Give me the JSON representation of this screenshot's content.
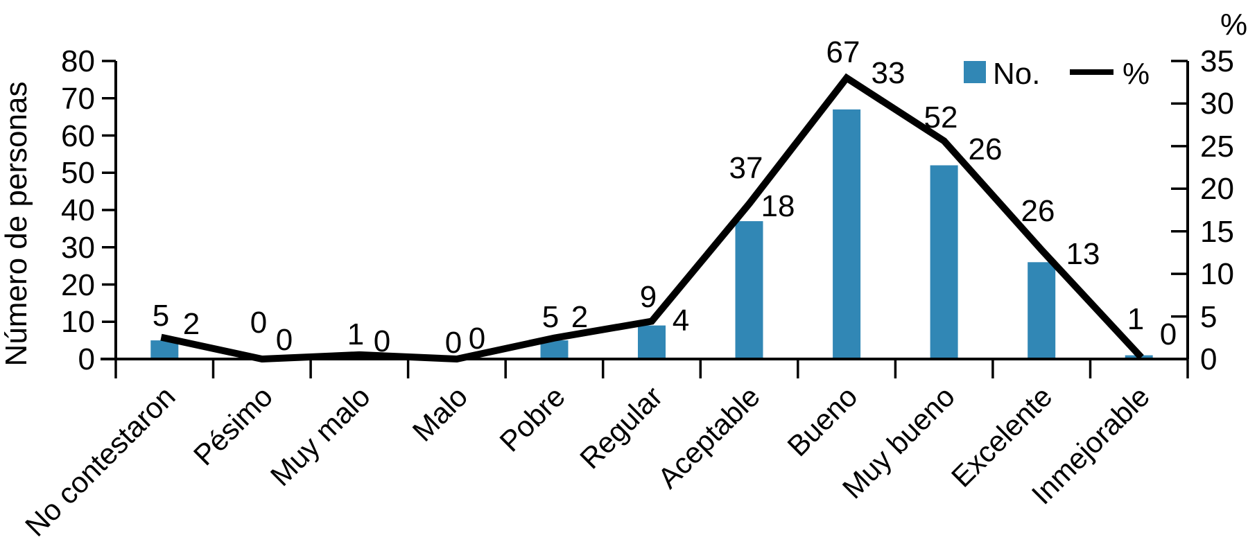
{
  "chart_data": {
    "type": "bar+line",
    "categories": [
      "No contestaron",
      "Pésimo",
      "Muy malo",
      "Malo",
      "Pobre",
      "Regular",
      "Aceptable",
      "Bueno",
      "Muy bueno",
      "Excelente",
      "Inmejorable"
    ],
    "series": [
      {
        "name": "No.",
        "type": "bar",
        "axis": "left",
        "color": "#3187b5",
        "values": [
          5,
          0,
          1,
          0,
          5,
          9,
          37,
          67,
          52,
          26,
          1
        ]
      },
      {
        "name": "%",
        "type": "line",
        "axis": "right",
        "color": "#000000",
        "values": [
          2,
          0,
          0,
          0,
          2,
          4,
          18,
          33,
          26,
          13,
          0
        ]
      }
    ],
    "left_axis": {
      "title": "Número de personas",
      "min": 0,
      "max": 80,
      "ticks": [
        0,
        10,
        20,
        30,
        40,
        50,
        60,
        70,
        80
      ]
    },
    "right_axis": {
      "title": "%",
      "min": 0,
      "max": 35,
      "ticks": [
        0,
        5,
        10,
        15,
        20,
        25,
        30,
        35
      ]
    },
    "legend": [
      {
        "label": "No.",
        "swatch": "square",
        "color": "#3187b5"
      },
      {
        "label": "%",
        "swatch": "line",
        "color": "#000000"
      }
    ],
    "grid": false,
    "legend_position": "top-right",
    "category_label_rotation_deg": 45
  }
}
